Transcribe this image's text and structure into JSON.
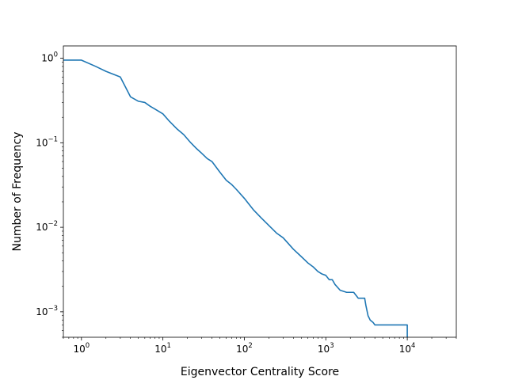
{
  "chart_data": {
    "type": "line",
    "title": "",
    "xlabel": "Eigenvector Centrality Score",
    "ylabel": "Number of Frequency",
    "xscale": "log",
    "yscale": "log",
    "xlim": [
      0.6,
      40000
    ],
    "ylim": [
      0.0005,
      1.4
    ],
    "grid": false,
    "line_color": "#1f77b4",
    "xticks": [
      {
        "base": "10",
        "exp": "0",
        "value": 1
      },
      {
        "base": "10",
        "exp": "1",
        "value": 10
      },
      {
        "base": "10",
        "exp": "2",
        "value": 100
      },
      {
        "base": "10",
        "exp": "3",
        "value": 1000
      },
      {
        "base": "10",
        "exp": "4",
        "value": 10000
      }
    ],
    "yticks": [
      {
        "base": "10",
        "exp": "0",
        "value": 1
      },
      {
        "base": "10",
        "exp": "−1",
        "value": 0.1
      },
      {
        "base": "10",
        "exp": "−2",
        "value": 0.01
      },
      {
        "base": "10",
        "exp": "−3",
        "value": 0.001
      }
    ],
    "series": [
      {
        "x": [
          0.6,
          1,
          1.5,
          2,
          3,
          4,
          5,
          6,
          7,
          8,
          10,
          12,
          15,
          18,
          22,
          26,
          30,
          35,
          40,
          50,
          60,
          70,
          80,
          100,
          130,
          160,
          200,
          250,
          300,
          400,
          500,
          600,
          700,
          800,
          900,
          1000,
          1100,
          1200,
          1300,
          1500,
          1800,
          2200,
          2500,
          3000,
          3100,
          3300,
          3500,
          3800,
          4000,
          5000,
          7000,
          10000,
          10000
        ],
        "y": [
          0.95,
          0.95,
          0.8,
          0.7,
          0.6,
          0.35,
          0.31,
          0.3,
          0.27,
          0.25,
          0.22,
          0.18,
          0.145,
          0.125,
          0.1,
          0.085,
          0.075,
          0.065,
          0.06,
          0.045,
          0.036,
          0.032,
          0.028,
          0.022,
          0.016,
          0.013,
          0.0105,
          0.0085,
          0.0075,
          0.0055,
          0.0045,
          0.0038,
          0.0034,
          0.003,
          0.0028,
          0.0027,
          0.0024,
          0.0024,
          0.0021,
          0.0018,
          0.0017,
          0.0017,
          0.00145,
          0.00145,
          0.0012,
          0.0009,
          0.0008,
          0.00075,
          0.0007,
          0.0007,
          0.0007,
          0.0007,
          0.0005
        ]
      }
    ]
  }
}
